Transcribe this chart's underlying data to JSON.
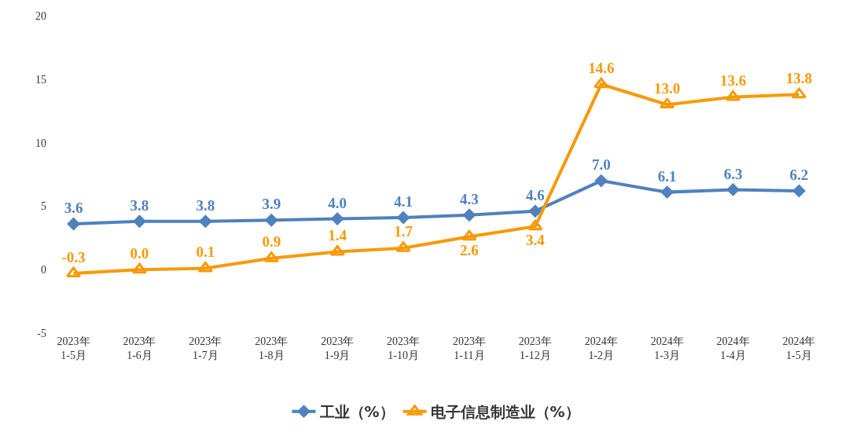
{
  "chart_data": {
    "type": "line",
    "categories": [
      "2023年\n1-5月",
      "2023年\n1-6月",
      "2023年\n1-7月",
      "2023年\n1-8月",
      "2023年\n1-9月",
      "2023年\n1-10月",
      "2023年\n1-11月",
      "2023年\n1-12月",
      "2024年\n1-2月",
      "2024年\n1-3月",
      "2024年\n1-4月",
      "2024年\n1-5月"
    ],
    "series": [
      {
        "name": "工业（%）",
        "color": "#4f81bd",
        "marker": "diamond",
        "values": [
          3.6,
          3.8,
          3.8,
          3.9,
          4.0,
          4.1,
          4.3,
          4.6,
          7.0,
          6.1,
          6.3,
          6.2
        ],
        "value_labels": [
          "3.6",
          "3.8",
          "3.8",
          "3.9",
          "4.0",
          "4.1",
          "4.3",
          "4.6",
          "7.0",
          "6.1",
          "6.3",
          "6.2"
        ]
      },
      {
        "name": "电子信息制造业（%）",
        "color": "#f79a06",
        "marker": "triangle",
        "values": [
          -0.3,
          0.0,
          0.1,
          0.9,
          1.4,
          1.7,
          2.6,
          3.4,
          14.6,
          13.0,
          13.6,
          13.8
        ],
        "value_labels": [
          "-0.3",
          "0.0",
          "0.1",
          "0.9",
          "1.4",
          "1.7",
          "2.6",
          "3.4",
          "14.6",
          "13.0",
          "13.6",
          "13.8"
        ]
      }
    ],
    "ylim": [
      -5,
      20
    ],
    "yticks": [
      -5,
      0,
      5,
      10,
      15,
      20
    ],
    "legend": "bottom"
  }
}
